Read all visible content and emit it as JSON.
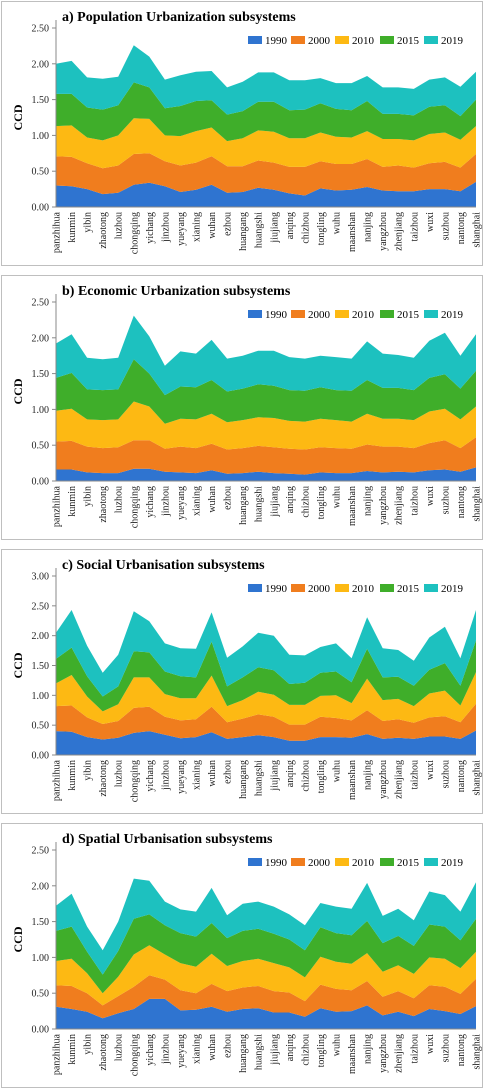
{
  "colors": {
    "1990": "#2f74d0",
    "2000": "#f07d1e",
    "2010": "#fdb913",
    "2015": "#3fae2a",
    "2019": "#1dc1bf"
  },
  "chart_data": [
    {
      "type": "area",
      "title": "a) Population Urbanization subsystems",
      "ylabel": "CCD",
      "ylim": [
        0,
        2.5
      ],
      "yticks": [
        "0.00",
        "0.50",
        "1.00",
        "1.50",
        "2.00",
        "2.50"
      ],
      "categories": [
        "panzhihua",
        "kunmin",
        "yibin",
        "zhaotong",
        "luzhou",
        "chongqing",
        "yichang",
        "jinzhou",
        "yueyang",
        "xianing",
        "wuhan",
        "ezhou",
        "huangang",
        "huangshi",
        "jiujiang",
        "anqing",
        "chizhou",
        "tongling",
        "wuhu",
        "maanshan",
        "nanjing",
        "yangzhou",
        "zhenjiang",
        "taizhou",
        "wuxi",
        "suzhou",
        "nantong",
        "shanghai"
      ],
      "series": [
        {
          "name": "1990",
          "values": [
            0.3,
            0.29,
            0.25,
            0.18,
            0.2,
            0.31,
            0.34,
            0.29,
            0.21,
            0.24,
            0.31,
            0.2,
            0.21,
            0.27,
            0.24,
            0.19,
            0.16,
            0.26,
            0.23,
            0.24,
            0.28,
            0.23,
            0.22,
            0.22,
            0.25,
            0.25,
            0.22,
            0.35
          ]
        },
        {
          "name": "2000",
          "values": [
            0.41,
            0.41,
            0.36,
            0.36,
            0.38,
            0.43,
            0.41,
            0.35,
            0.37,
            0.38,
            0.4,
            0.37,
            0.36,
            0.38,
            0.38,
            0.37,
            0.4,
            0.38,
            0.37,
            0.36,
            0.39,
            0.33,
            0.36,
            0.33,
            0.36,
            0.38,
            0.33,
            0.39
          ]
        },
        {
          "name": "2010",
          "values": [
            0.42,
            0.44,
            0.36,
            0.39,
            0.42,
            0.5,
            0.48,
            0.36,
            0.41,
            0.44,
            0.4,
            0.35,
            0.39,
            0.42,
            0.43,
            0.4,
            0.4,
            0.4,
            0.38,
            0.37,
            0.39,
            0.39,
            0.37,
            0.38,
            0.41,
            0.41,
            0.39,
            0.39
          ]
        },
        {
          "name": "2015",
          "values": [
            0.45,
            0.44,
            0.42,
            0.43,
            0.42,
            0.5,
            0.44,
            0.38,
            0.42,
            0.42,
            0.38,
            0.37,
            0.38,
            0.4,
            0.42,
            0.39,
            0.4,
            0.41,
            0.39,
            0.38,
            0.42,
            0.35,
            0.35,
            0.35,
            0.38,
            0.38,
            0.33,
            0.37
          ]
        },
        {
          "name": "2019",
          "values": [
            0.42,
            0.46,
            0.42,
            0.43,
            0.4,
            0.52,
            0.43,
            0.4,
            0.43,
            0.41,
            0.41,
            0.38,
            0.41,
            0.41,
            0.41,
            0.42,
            0.41,
            0.35,
            0.36,
            0.38,
            0.35,
            0.37,
            0.37,
            0.37,
            0.38,
            0.39,
            0.41,
            0.39
          ]
        }
      ]
    },
    {
      "type": "area",
      "title": "b) Economic Urbanization subsystems",
      "ylabel": "CCD",
      "ylim": [
        0,
        2.5
      ],
      "yticks": [
        "0.00",
        "0.50",
        "1.00",
        "1.50",
        "2.00",
        "2.50"
      ],
      "categories": [
        "panzhihua",
        "kunmin",
        "yibin",
        "zhaotong",
        "luzhou",
        "chongqing",
        "yichang",
        "jinzhou",
        "yueyang",
        "xianing",
        "wuhan",
        "ezhou",
        "huangang",
        "huangshi",
        "jiujiang",
        "anqing",
        "chizhou",
        "tongling",
        "wuhu",
        "maanshan",
        "nanjing",
        "yangzhou",
        "zhenjiang",
        "taizhou",
        "wuxi",
        "suzhou",
        "nantong",
        "shanghai"
      ],
      "series": [
        {
          "name": "1990",
          "values": [
            0.16,
            0.16,
            0.12,
            0.11,
            0.11,
            0.17,
            0.17,
            0.13,
            0.12,
            0.11,
            0.15,
            0.1,
            0.11,
            0.13,
            0.11,
            0.1,
            0.09,
            0.12,
            0.11,
            0.11,
            0.14,
            0.12,
            0.13,
            0.12,
            0.15,
            0.16,
            0.13,
            0.19
          ]
        },
        {
          "name": "2000",
          "values": [
            0.39,
            0.4,
            0.36,
            0.35,
            0.36,
            0.4,
            0.4,
            0.32,
            0.36,
            0.35,
            0.37,
            0.34,
            0.35,
            0.36,
            0.36,
            0.35,
            0.35,
            0.35,
            0.35,
            0.34,
            0.37,
            0.36,
            0.35,
            0.34,
            0.38,
            0.41,
            0.33,
            0.42
          ]
        },
        {
          "name": "2010",
          "values": [
            0.43,
            0.45,
            0.38,
            0.39,
            0.39,
            0.54,
            0.47,
            0.35,
            0.39,
            0.4,
            0.42,
            0.38,
            0.39,
            0.4,
            0.41,
            0.39,
            0.39,
            0.4,
            0.39,
            0.38,
            0.43,
            0.39,
            0.39,
            0.39,
            0.44,
            0.44,
            0.4,
            0.43
          ]
        },
        {
          "name": "2015",
          "values": [
            0.46,
            0.5,
            0.42,
            0.42,
            0.42,
            0.59,
            0.46,
            0.4,
            0.45,
            0.45,
            0.47,
            0.43,
            0.44,
            0.46,
            0.45,
            0.43,
            0.43,
            0.44,
            0.42,
            0.43,
            0.47,
            0.43,
            0.43,
            0.42,
            0.47,
            0.48,
            0.43,
            0.5
          ]
        },
        {
          "name": "2019",
          "values": [
            0.48,
            0.54,
            0.44,
            0.43,
            0.44,
            0.61,
            0.52,
            0.41,
            0.49,
            0.47,
            0.56,
            0.46,
            0.46,
            0.47,
            0.49,
            0.46,
            0.45,
            0.44,
            0.46,
            0.45,
            0.54,
            0.48,
            0.46,
            0.45,
            0.52,
            0.58,
            0.46,
            0.51
          ]
        }
      ]
    },
    {
      "type": "area",
      "title": "c) Social Urbanisation subsystems",
      "ylabel": "CCD",
      "ylim": [
        0,
        3.0
      ],
      "yticks": [
        "0.00",
        "0.50",
        "1.00",
        "1.50",
        "2.00",
        "2.50",
        "3.00"
      ],
      "categories": [
        "panzhihua",
        "kunmin",
        "yibin",
        "zhaotong",
        "luzhou",
        "chongqing",
        "yichang",
        "jinzhou",
        "yueyang",
        "xianing",
        "wuhan",
        "ezhou",
        "huangang",
        "huangshi",
        "jiujiang",
        "anqing",
        "chizhou",
        "tongling",
        "wuhu",
        "maanshan",
        "nanjing",
        "yangzhou",
        "zhenjiang",
        "taizhou",
        "wuxi",
        "suzhou",
        "nantong",
        "shanghai"
      ],
      "series": [
        {
          "name": "1990",
          "values": [
            0.4,
            0.39,
            0.3,
            0.26,
            0.29,
            0.37,
            0.4,
            0.34,
            0.28,
            0.3,
            0.38,
            0.27,
            0.3,
            0.33,
            0.3,
            0.24,
            0.24,
            0.3,
            0.3,
            0.29,
            0.35,
            0.27,
            0.29,
            0.27,
            0.31,
            0.31,
            0.27,
            0.41
          ]
        },
        {
          "name": "2000",
          "values": [
            0.42,
            0.44,
            0.33,
            0.26,
            0.28,
            0.42,
            0.41,
            0.3,
            0.3,
            0.3,
            0.43,
            0.28,
            0.31,
            0.35,
            0.34,
            0.27,
            0.27,
            0.34,
            0.32,
            0.29,
            0.4,
            0.3,
            0.31,
            0.27,
            0.32,
            0.34,
            0.28,
            0.45
          ]
        },
        {
          "name": "2010",
          "values": [
            0.38,
            0.51,
            0.35,
            0.21,
            0.28,
            0.51,
            0.49,
            0.38,
            0.37,
            0.35,
            0.52,
            0.27,
            0.31,
            0.38,
            0.37,
            0.33,
            0.33,
            0.35,
            0.38,
            0.29,
            0.53,
            0.35,
            0.34,
            0.28,
            0.4,
            0.43,
            0.28,
            0.53
          ]
        },
        {
          "name": "2015",
          "values": [
            0.41,
            0.46,
            0.34,
            0.25,
            0.3,
            0.44,
            0.42,
            0.38,
            0.37,
            0.35,
            0.57,
            0.33,
            0.38,
            0.41,
            0.41,
            0.35,
            0.37,
            0.39,
            0.4,
            0.35,
            0.5,
            0.38,
            0.37,
            0.34,
            0.4,
            0.46,
            0.33,
            0.53
          ]
        },
        {
          "name": "2019",
          "values": [
            0.44,
            0.63,
            0.51,
            0.4,
            0.53,
            0.67,
            0.52,
            0.47,
            0.47,
            0.48,
            0.49,
            0.48,
            0.52,
            0.58,
            0.58,
            0.49,
            0.46,
            0.43,
            0.47,
            0.4,
            0.53,
            0.49,
            0.45,
            0.42,
            0.54,
            0.61,
            0.46,
            0.51
          ]
        }
      ]
    },
    {
      "type": "area",
      "title": "d) Spatial Urbanisation subsystems",
      "ylabel": "CCD",
      "ylim": [
        0,
        2.5
      ],
      "yticks": [
        "0.00",
        "0.50",
        "1.00",
        "1.50",
        "2.00",
        "2.50"
      ],
      "categories": [
        "panzhihua",
        "kunmin",
        "yibin",
        "zhaotong",
        "luzhou",
        "chongqing",
        "yichang",
        "jinzhou",
        "yueyang",
        "xianing",
        "wuhan",
        "ezhou",
        "huangang",
        "huangshi",
        "jiujiang",
        "anqing",
        "chizhou",
        "tongling",
        "wuhu",
        "maanshan",
        "nanjing",
        "yangzhou",
        "zhenjiang",
        "taizhou",
        "wuxi",
        "suzhou",
        "nantong",
        "shanghai"
      ],
      "series": [
        {
          "name": "1990",
          "values": [
            0.31,
            0.28,
            0.24,
            0.15,
            0.22,
            0.28,
            0.42,
            0.42,
            0.26,
            0.27,
            0.31,
            0.24,
            0.28,
            0.29,
            0.23,
            0.23,
            0.17,
            0.29,
            0.24,
            0.25,
            0.33,
            0.19,
            0.24,
            0.18,
            0.28,
            0.25,
            0.21,
            0.32
          ]
        },
        {
          "name": "2000",
          "values": [
            0.3,
            0.32,
            0.26,
            0.18,
            0.24,
            0.31,
            0.33,
            0.27,
            0.28,
            0.23,
            0.32,
            0.29,
            0.3,
            0.31,
            0.3,
            0.28,
            0.22,
            0.33,
            0.32,
            0.29,
            0.34,
            0.26,
            0.29,
            0.25,
            0.33,
            0.34,
            0.28,
            0.38
          ]
        },
        {
          "name": "2010",
          "values": [
            0.34,
            0.38,
            0.28,
            0.17,
            0.27,
            0.45,
            0.42,
            0.35,
            0.38,
            0.37,
            0.42,
            0.35,
            0.37,
            0.38,
            0.39,
            0.35,
            0.33,
            0.39,
            0.38,
            0.37,
            0.39,
            0.35,
            0.36,
            0.34,
            0.39,
            0.39,
            0.36,
            0.38
          ]
        },
        {
          "name": "2015",
          "values": [
            0.42,
            0.45,
            0.3,
            0.26,
            0.36,
            0.5,
            0.43,
            0.41,
            0.42,
            0.42,
            0.43,
            0.39,
            0.42,
            0.42,
            0.41,
            0.39,
            0.38,
            0.41,
            0.4,
            0.4,
            0.45,
            0.4,
            0.41,
            0.39,
            0.46,
            0.45,
            0.39,
            0.46
          ]
        },
        {
          "name": "2019",
          "values": [
            0.35,
            0.46,
            0.35,
            0.34,
            0.41,
            0.56,
            0.47,
            0.33,
            0.33,
            0.35,
            0.49,
            0.32,
            0.38,
            0.38,
            0.38,
            0.35,
            0.35,
            0.34,
            0.37,
            0.37,
            0.53,
            0.38,
            0.38,
            0.36,
            0.46,
            0.44,
            0.4,
            0.51
          ]
        }
      ]
    }
  ]
}
